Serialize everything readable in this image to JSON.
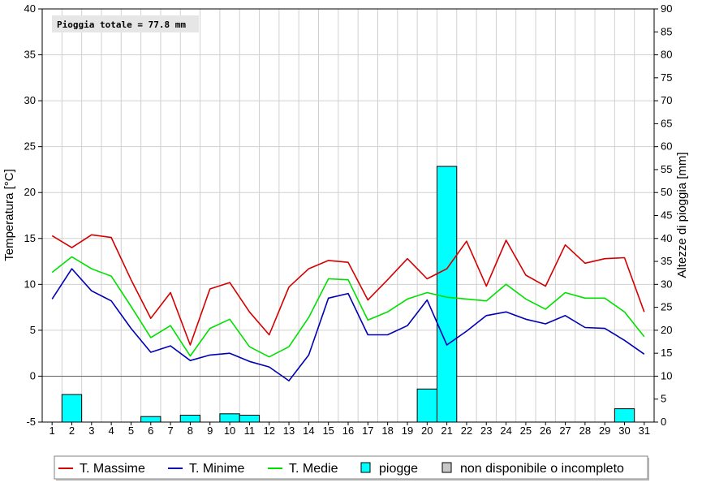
{
  "chart_data": {
    "type": "line",
    "annotation": "Pioggia totale = 77.8 mm",
    "x": [
      1,
      2,
      3,
      4,
      5,
      6,
      7,
      8,
      9,
      10,
      11,
      12,
      13,
      14,
      15,
      16,
      17,
      18,
      19,
      20,
      21,
      22,
      23,
      24,
      25,
      26,
      27,
      28,
      29,
      30,
      31
    ],
    "y_left": {
      "label": "Temperatura [°C]",
      "range": [
        -5,
        40
      ],
      "ticks": [
        "40",
        "35",
        "30",
        "25",
        "20",
        "15",
        "10",
        "5",
        "0",
        "-5"
      ]
    },
    "y_right": {
      "label": "Altezze di pioggia [mm]",
      "range": [
        0,
        90
      ],
      "ticks": [
        "90",
        "85",
        "80",
        "75",
        "70",
        "65",
        "60",
        "55",
        "50",
        "45",
        "40",
        "35",
        "30",
        "25",
        "20",
        "15",
        "10",
        "5",
        "0"
      ]
    },
    "x_ticks": [
      "1",
      "2",
      "3",
      "4",
      "5",
      "6",
      "7",
      "8",
      "9",
      "10",
      "11",
      "12",
      "13",
      "14",
      "15",
      "16",
      "17",
      "18",
      "19",
      "20",
      "21",
      "22",
      "23",
      "24",
      "25",
      "26",
      "27",
      "28",
      "29",
      "30",
      "31"
    ],
    "grid": true,
    "legend_position": "bottom",
    "series": [
      {
        "name": "T. Massime",
        "color": "#d40000",
        "values": [
          15.3,
          14.0,
          15.4,
          15.1,
          10.5,
          6.3,
          9.1,
          3.4,
          9.5,
          10.2,
          7.0,
          4.5,
          9.7,
          11.7,
          12.6,
          12.4,
          8.3,
          10.5,
          12.8,
          10.6,
          11.7,
          14.7,
          9.8,
          14.8,
          11.0,
          9.8,
          14.3,
          12.3,
          12.8,
          12.9,
          7.0
        ]
      },
      {
        "name": "T. Minime",
        "color": "#0000b4",
        "values": [
          8.4,
          11.7,
          9.3,
          8.2,
          5.2,
          2.6,
          3.3,
          1.7,
          2.3,
          2.5,
          1.6,
          1.0,
          -0.5,
          2.3,
          8.5,
          9.0,
          4.5,
          4.5,
          5.5,
          8.3,
          3.4,
          4.9,
          6.6,
          7.0,
          6.2,
          5.7,
          6.6,
          5.3,
          5.2,
          3.9,
          2.4
        ]
      },
      {
        "name": "T. Medie",
        "color": "#00e000",
        "values": [
          11.3,
          13.0,
          11.7,
          10.9,
          7.6,
          4.2,
          5.5,
          2.2,
          5.2,
          6.2,
          3.2,
          2.1,
          3.2,
          6.4,
          10.6,
          10.5,
          6.1,
          7.0,
          8.4,
          9.1,
          8.6,
          8.4,
          8.2,
          10.0,
          8.4,
          7.3,
          9.1,
          8.5,
          8.5,
          7.0,
          4.3
        ]
      }
    ],
    "bars": {
      "name": "piogge",
      "color": "#00ffff",
      "values": [
        0,
        6.0,
        0,
        0,
        0,
        1.2,
        0,
        1.5,
        0,
        1.8,
        1.5,
        0,
        0,
        0,
        0,
        0,
        0,
        0,
        0,
        7.2,
        55.7,
        0,
        0,
        0,
        0,
        0,
        0,
        0,
        0,
        2.9,
        0
      ]
    },
    "legend_items": [
      {
        "label": "T. Massime",
        "kind": "line",
        "color": "#d40000"
      },
      {
        "label": "T. Minime",
        "kind": "line",
        "color": "#0000b4"
      },
      {
        "label": "T. Medie",
        "kind": "line",
        "color": "#00e000"
      },
      {
        "label": "piogge",
        "kind": "box",
        "color": "#00ffff"
      },
      {
        "label": "non disponibile o incompleto",
        "kind": "box",
        "color": "#c8c8c8"
      }
    ]
  }
}
